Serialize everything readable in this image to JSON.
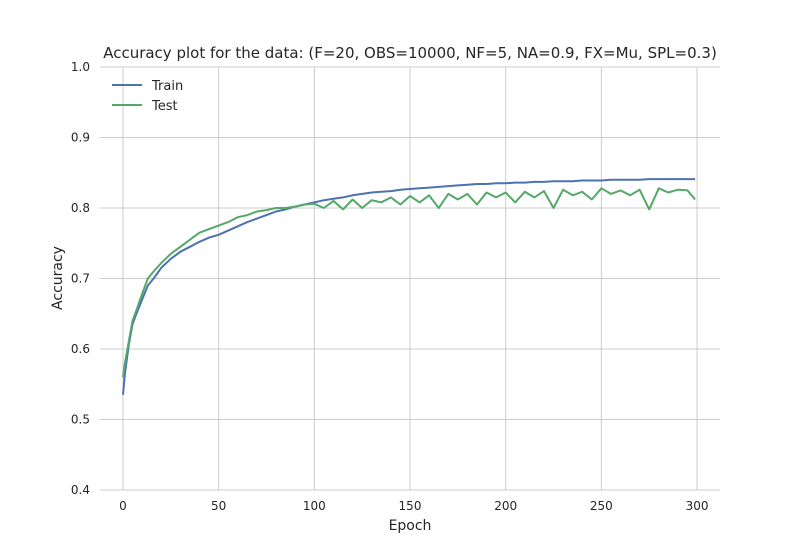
{
  "chart_data": {
    "type": "line",
    "title": "Accuracy plot for the data: (F=20, OBS=10000, NF=5, NA=0.9, FX=Mu, SPL=0.3)",
    "xlabel": "Epoch",
    "ylabel": "Accuracy",
    "xlim": [
      -12,
      312
    ],
    "ylim": [
      0.4,
      1.0
    ],
    "xticks": [
      0,
      50,
      100,
      150,
      200,
      250,
      300
    ],
    "xtick_labels": [
      "0",
      "50",
      "100",
      "150",
      "200",
      "250",
      "300"
    ],
    "yticks": [
      0.4,
      0.5,
      0.6,
      0.7,
      0.8,
      0.9,
      1.0
    ],
    "ytick_labels": [
      "0.4",
      "0.5",
      "0.6",
      "0.7",
      "0.8",
      "0.9",
      "1.0"
    ],
    "grid": true,
    "legend_position": "top-left",
    "x": [
      0,
      1,
      2,
      3,
      5,
      7,
      10,
      13,
      16,
      20,
      25,
      30,
      35,
      40,
      45,
      50,
      55,
      60,
      65,
      70,
      75,
      80,
      85,
      90,
      95,
      100,
      105,
      110,
      115,
      120,
      125,
      130,
      135,
      140,
      145,
      150,
      155,
      160,
      165,
      170,
      175,
      180,
      185,
      190,
      195,
      200,
      205,
      210,
      215,
      220,
      225,
      230,
      235,
      240,
      245,
      250,
      255,
      260,
      265,
      270,
      275,
      280,
      285,
      290,
      295,
      299
    ],
    "series": [
      {
        "name": "Train",
        "color": "#4c72b0",
        "values": [
          0.535,
          0.565,
          0.585,
          0.605,
          0.635,
          0.65,
          0.67,
          0.69,
          0.7,
          0.715,
          0.728,
          0.738,
          0.745,
          0.752,
          0.758,
          0.762,
          0.768,
          0.774,
          0.78,
          0.785,
          0.79,
          0.795,
          0.798,
          0.802,
          0.805,
          0.808,
          0.811,
          0.813,
          0.815,
          0.818,
          0.82,
          0.822,
          0.823,
          0.824,
          0.826,
          0.827,
          0.828,
          0.829,
          0.83,
          0.831,
          0.832,
          0.833,
          0.834,
          0.834,
          0.835,
          0.835,
          0.836,
          0.836,
          0.837,
          0.837,
          0.838,
          0.838,
          0.838,
          0.839,
          0.839,
          0.839,
          0.84,
          0.84,
          0.84,
          0.84,
          0.841,
          0.841,
          0.841,
          0.841,
          0.841,
          0.841
        ]
      },
      {
        "name": "Test",
        "color": "#55a868",
        "values": [
          0.56,
          0.58,
          0.595,
          0.61,
          0.64,
          0.655,
          0.678,
          0.7,
          0.71,
          0.722,
          0.735,
          0.745,
          0.755,
          0.765,
          0.77,
          0.775,
          0.78,
          0.787,
          0.79,
          0.795,
          0.797,
          0.8,
          0.8,
          0.802,
          0.805,
          0.806,
          0.8,
          0.81,
          0.798,
          0.812,
          0.8,
          0.811,
          0.808,
          0.815,
          0.805,
          0.817,
          0.808,
          0.818,
          0.8,
          0.82,
          0.812,
          0.82,
          0.805,
          0.822,
          0.815,
          0.822,
          0.808,
          0.823,
          0.815,
          0.824,
          0.8,
          0.826,
          0.818,
          0.823,
          0.812,
          0.828,
          0.82,
          0.825,
          0.818,
          0.826,
          0.798,
          0.828,
          0.822,
          0.826,
          0.825,
          0.812
        ]
      }
    ]
  },
  "colors": {
    "background": "#ffffff",
    "grid": "#cccccc",
    "text": "#262626"
  }
}
